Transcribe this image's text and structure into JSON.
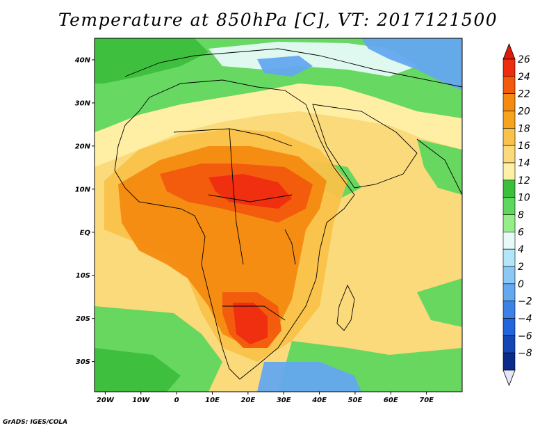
{
  "title": "Temperature at 850hPa [C], VT: 2017121500",
  "credit": "GrADS: IGES/COLA",
  "map": {
    "lon_range": [
      -23,
      80
    ],
    "lat_range": [
      -37,
      45
    ],
    "lon_ticks": [
      {
        "lon": -20,
        "label": "20W"
      },
      {
        "lon": -10,
        "label": "10W"
      },
      {
        "lon": 0,
        "label": "0"
      },
      {
        "lon": 10,
        "label": "10E"
      },
      {
        "lon": 20,
        "label": "20E"
      },
      {
        "lon": 30,
        "label": "30E"
      },
      {
        "lon": 40,
        "label": "40E"
      },
      {
        "lon": 50,
        "label": "50E"
      },
      {
        "lon": 60,
        "label": "60E"
      },
      {
        "lon": 70,
        "label": "70E"
      }
    ],
    "lat_ticks": [
      {
        "lat": 40,
        "label": "40N"
      },
      {
        "lat": 30,
        "label": "30N"
      },
      {
        "lat": 20,
        "label": "20N"
      },
      {
        "lat": 10,
        "label": "10N"
      },
      {
        "lat": 0,
        "label": "EQ"
      },
      {
        "lat": -10,
        "label": "10S"
      },
      {
        "lat": -20,
        "label": "20S"
      },
      {
        "lat": -30,
        "label": "30S"
      }
    ]
  },
  "colorbar": {
    "labels": [
      "26",
      "24",
      "22",
      "20",
      "18",
      "16",
      "14",
      "12",
      "10",
      "8",
      "6",
      "4",
      "2",
      "0",
      "−2",
      "−4",
      "−6",
      "−8"
    ],
    "colors": [
      "#ee2c10",
      "#f25a0c",
      "#f48a10",
      "#f6a41e",
      "#f9c24a",
      "#fbda7c",
      "#fff0a8",
      "#3cbf3c",
      "#5fd75f",
      "#96ee8a",
      "#e6fbf8",
      "#b4e6fa",
      "#8cc8f5",
      "#64a8f0",
      "#3c82e6",
      "#2464dc",
      "#1446b4",
      "#0a2a8c"
    ],
    "top_color": "#e01a0a",
    "bottom_color": "#e6e6fa"
  },
  "regions": {
    "hot_core": "#ee2c10",
    "hot": "#f25a0c",
    "warm": "#f48a10",
    "mild": "#f9c24a",
    "cool": "#fff0a8",
    "green": "#5fd75f",
    "green_dark": "#3cbf3c",
    "cold": "#64a8f0",
    "pale": "#e6fbf8"
  }
}
